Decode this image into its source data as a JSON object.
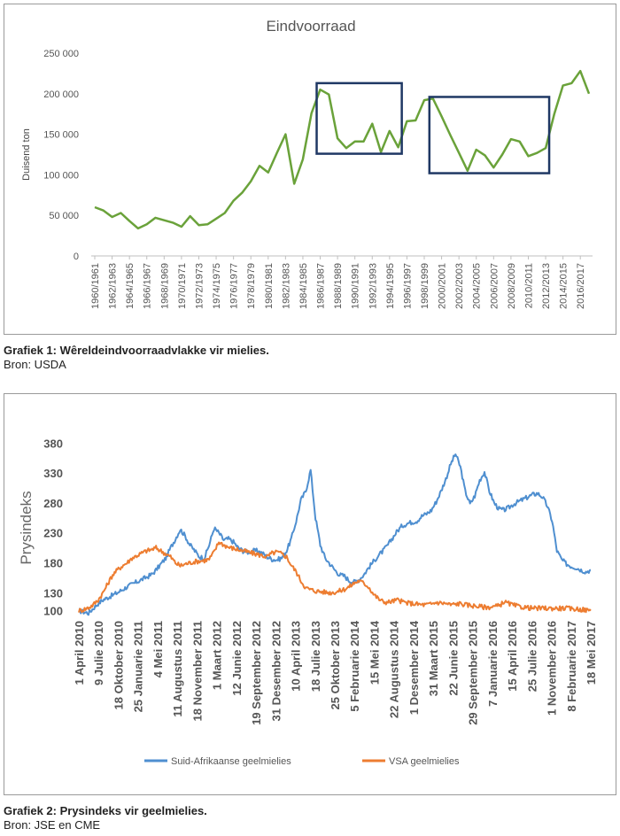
{
  "captions": {
    "c1_title": "Grafiek 1: Wêreldeindvoorraadvlakke vir mielies.",
    "c1_source": "Bron: USDA",
    "c2_title": "Grafiek 2: Prysindeks vir geelmielies.",
    "c2_source": "Bron: JSE en CME"
  },
  "chart_data": [
    {
      "type": "line",
      "title": "Eindvoorraad",
      "xlabel": "",
      "ylabel": "Duisend ton",
      "ylim": [
        0,
        250000
      ],
      "yticks": [
        "0",
        "50 000",
        "100 000",
        "150 000",
        "200 000",
        "250 000"
      ],
      "grid": false,
      "color": "#6aa23a",
      "box_color": "#1f3864",
      "x_labels": [
        "1960/1961",
        "1962/1963",
        "1964/1965",
        "1966/1967",
        "1968/1969",
        "1970/1971",
        "1972/1973",
        "1974/1975",
        "1976/1977",
        "1978/1979",
        "1980/1981",
        "1982/1983",
        "1984/1985",
        "1986/1987",
        "1988/1989",
        "1990/1991",
        "1992/1993",
        "1994/1995",
        "1996/1997",
        "1998/1999",
        "2000/2001",
        "2002/2003",
        "2004/2005",
        "2006/2007",
        "2008/2009",
        "2010/2011",
        "2012/2013",
        "2014/2015",
        "2016/2017"
      ],
      "values": [
        60000,
        56000,
        48000,
        53000,
        43000,
        34000,
        39000,
        47000,
        44000,
        41000,
        36000,
        49000,
        38000,
        39000,
        46000,
        53000,
        68000,
        78000,
        92000,
        111000,
        103000,
        127000,
        150000,
        89000,
        119000,
        176000,
        205000,
        199000,
        145000,
        133000,
        141000,
        141000,
        163000,
        128000,
        154000,
        134000,
        166000,
        167000,
        192000,
        194000,
        172000,
        149000,
        127000,
        105000,
        131000,
        124000,
        109000,
        125000,
        144000,
        141000,
        123000,
        127000,
        133000,
        175000,
        210000,
        213000,
        228000,
        200000
      ],
      "highlight_boxes": [
        {
          "from": "1986/1987",
          "to": "1995/1996"
        },
        {
          "from": "1999/2000",
          "to": "2012/2013"
        }
      ]
    },
    {
      "type": "line",
      "title": "",
      "xlabel": "",
      "ylabel": "Prysindeks",
      "ylim": [
        80,
        390
      ],
      "yticks": [
        100,
        130,
        180,
        230,
        280,
        330,
        380
      ],
      "grid": false,
      "legend": "bottom",
      "x_labels": [
        "1 April 2010",
        "9 Julie 2010",
        "18 Oktober 2010",
        "25 Januarie 2011",
        "4 Mei 2011",
        "11 Augustus 2011",
        "18 November 2011",
        "1 Maart 2012",
        "12 Junie 2012",
        "19 September 2012",
        "31 Desember 2012",
        "10 April 2013",
        "18 Julie 2013",
        "25 Oktober 2013",
        "5 Februarie 2014",
        "15 Mei 2014",
        "22 Augustus 2014",
        "1 Desember 2014",
        "31 Maart 2015",
        "22 Junie 2015",
        "29 September 2015",
        "7 Januarie 2016",
        "15 April 2016",
        "25 Julie 2016",
        "1 November 2016",
        "8 Februarie 2017",
        "18 Mei 2017"
      ],
      "series": [
        {
          "name": "Suid-Afrikaanse geelmielies",
          "color": "#4f8fd0",
          "values": [
            100,
            98,
            96,
            104,
            112,
            118,
            122,
            126,
            130,
            135,
            140,
            144,
            148,
            152,
            156,
            160,
            168,
            178,
            188,
            205,
            220,
            236,
            225,
            210,
            200,
            190,
            188,
            210,
            238,
            230,
            218,
            220,
            215,
            205,
            200,
            198,
            200,
            200,
            196,
            190,
            186,
            185,
            188,
            200,
            220,
            250,
            285,
            300,
            335,
            255,
            210,
            188,
            178,
            168,
            160,
            158,
            150,
            148,
            152,
            160,
            172,
            182,
            192,
            200,
            210,
            222,
            234,
            242,
            246,
            248,
            250,
            258,
            262,
            268,
            282,
            300,
            320,
            345,
            362,
            340,
            300,
            278,
            292,
            318,
            332,
            300,
            280,
            270,
            268,
            272,
            278,
            282,
            286,
            290,
            294,
            296,
            290,
            275,
            250,
            200,
            185,
            178,
            174,
            172,
            168,
            165,
            168
          ]
        },
        {
          "name": "VSA geelmielies",
          "color": "#ed7d31",
          "values": [
            100,
            102,
            105,
            110,
            118,
            130,
            145,
            160,
            168,
            175,
            180,
            188,
            192,
            196,
            200,
            202,
            205,
            200,
            195,
            190,
            180,
            175,
            178,
            180,
            182,
            183,
            184,
            186,
            198,
            215,
            210,
            206,
            204,
            202,
            200,
            198,
            196,
            194,
            192,
            190,
            196,
            198,
            195,
            190,
            176,
            165,
            150,
            138,
            135,
            133,
            132,
            131,
            130,
            131,
            133,
            136,
            140,
            146,
            150,
            146,
            140,
            128,
            120,
            115,
            114,
            116,
            118,
            115,
            113,
            112,
            111,
            110,
            110,
            111,
            114,
            113,
            112,
            110,
            111,
            112,
            110,
            109,
            108,
            107,
            106,
            106,
            107,
            108,
            115,
            112,
            109,
            107,
            106,
            105,
            104,
            104,
            104,
            104,
            104,
            104,
            104,
            104,
            103,
            103,
            102,
            101,
            100
          ]
        }
      ]
    }
  ]
}
